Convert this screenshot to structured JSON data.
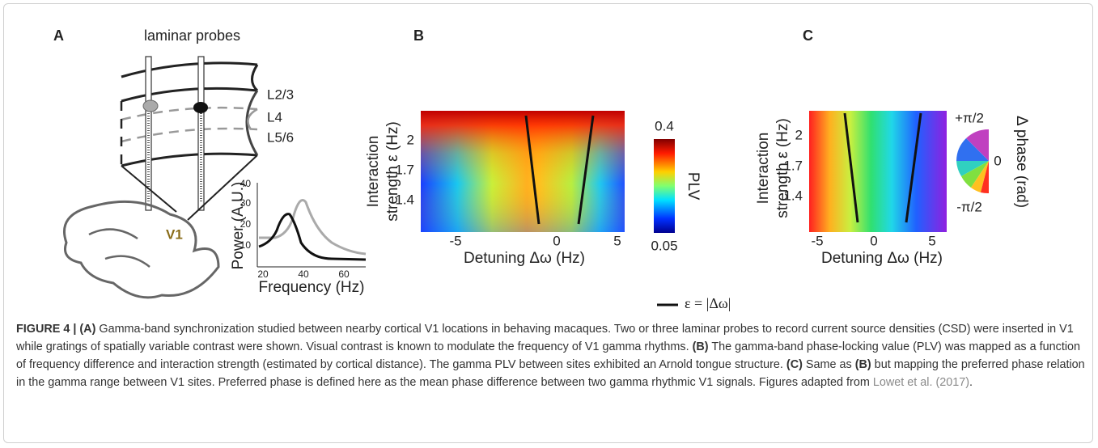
{
  "panels": {
    "A": {
      "label": "A",
      "title": "laminar probes",
      "layers": [
        "L2/3",
        "L4",
        "L5/6"
      ],
      "area": "V1",
      "inset": {
        "y_label": "Power (A.U.)",
        "x_label": "Frequency (Hz)",
        "yticks": [
          "10",
          "20",
          "30",
          "40"
        ],
        "xticks": [
          "20",
          "40",
          "60"
        ]
      }
    },
    "B": {
      "label": "B",
      "y_label": [
        "Interaction",
        "strength ε (Hz)"
      ],
      "x_label": "Detuning Δω (Hz)",
      "yticks": [
        "2",
        "1.7",
        "1.4"
      ],
      "xticks": [
        "-5",
        "0",
        "5"
      ],
      "colorbar": {
        "label": "PLV",
        "max": "0.4",
        "min": "0.05"
      }
    },
    "C": {
      "label": "C",
      "y_label": [
        "Interaction",
        "strength ε (Hz)"
      ],
      "x_label": "Detuning Δω (Hz)",
      "yticks": [
        "2",
        "1.7",
        "1.4"
      ],
      "xticks": [
        "-5",
        "0",
        "5"
      ],
      "colorbar": {
        "label": "Δ phase (rad)",
        "max": "+π/2",
        "mid": "0",
        "min": "-π/2"
      }
    }
  },
  "legend": "ε = |Δω|",
  "caption": [
    {
      "text": "FIGURE 4 | (A)",
      "style": "bold"
    },
    {
      "text": " Gamma-band synchronization studied between nearby cortical V1 locations in behaving macaques. Two or three laminar probes to record current source densities (CSD) were inserted in V1 while gratings of spatially variable contrast were shown. Visual contrast is known to modulate the frequency of V1 gamma rhythms. ",
      "style": "normal"
    },
    {
      "text": "(B)",
      "style": "bold"
    },
    {
      "text": " The gamma-band phase-locking value (PLV) was mapped as a function of frequency difference and interaction strength (estimated by cortical distance). The gamma PLV between sites exhibited an Arnold tongue structure. ",
      "style": "normal"
    },
    {
      "text": "(C)",
      "style": "bold"
    },
    {
      "text": " Same as ",
      "style": "normal"
    },
    {
      "text": "(B)",
      "style": "bold"
    },
    {
      "text": " but mapping the preferred phase relation in the gamma range between V1 sites. Preferred phase is defined here as the mean phase difference between two gamma rhythmic V1 signals. Figures adapted from ",
      "style": "normal"
    },
    {
      "text": "Lowet et al. (2017)",
      "style": "link"
    },
    {
      "text": ".",
      "style": "normal"
    }
  ]
}
